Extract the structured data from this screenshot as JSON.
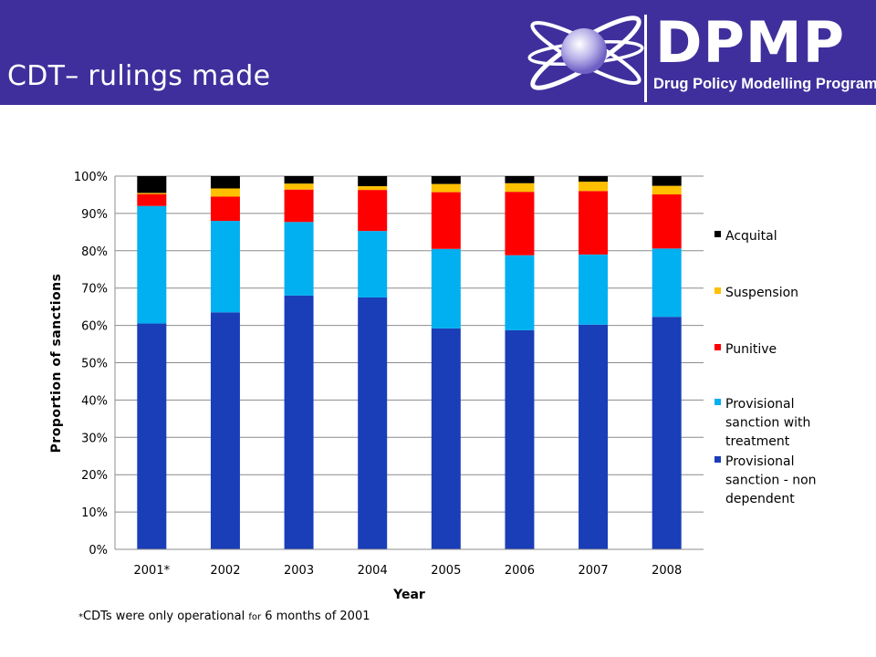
{
  "header": {
    "title": "CDT– rulings made",
    "logo_text": "DPMP",
    "logo_subtitle": "Drug Policy Modelling Program",
    "background_color": "#3f2f9c"
  },
  "footnote": {
    "star": "*",
    "part1": "CDTs were only operational ",
    "part2": "for",
    "part3": " 6 months of 2001"
  },
  "chart_data": {
    "type": "bar",
    "stacked": true,
    "categories": [
      "2001*",
      "2002",
      "2003",
      "2004",
      "2005",
      "2006",
      "2007",
      "2008"
    ],
    "series": [
      {
        "name": "Provisional sanction - non dependent",
        "color": "#1a3eb8",
        "values": [
          60.5,
          63.5,
          68.0,
          67.5,
          59.2,
          58.7,
          60.2,
          62.3
        ]
      },
      {
        "name": "Provisional sanction with treatment",
        "color": "#00b0f0",
        "values": [
          31.5,
          24.5,
          19.7,
          17.8,
          21.3,
          20.1,
          18.8,
          18.3
        ]
      },
      {
        "name": "Punitive",
        "color": "#ff0000",
        "values": [
          3.2,
          6.5,
          8.7,
          11.0,
          15.2,
          17.0,
          17.0,
          14.5
        ]
      },
      {
        "name": "Suspension",
        "color": "#ffc000",
        "values": [
          0.3,
          2.2,
          1.6,
          1.0,
          2.2,
          2.3,
          2.5,
          2.3
        ]
      },
      {
        "name": "Acquital",
        "color": "#000000",
        "values": [
          4.5,
          3.3,
          2.0,
          2.7,
          2.1,
          1.9,
          1.5,
          2.6
        ]
      }
    ],
    "legend_order": [
      "Acquital",
      "Suspension",
      "Punitive",
      "Provisional sanction with treatment",
      "Provisional sanction - non dependent"
    ],
    "legend_lines": {
      "Acquital": [
        "Acquital"
      ],
      "Suspension": [
        "Suspension"
      ],
      "Punitive": [
        "Punitive"
      ],
      "Provisional sanction with treatment": [
        "Provisional",
        "sanction with",
        "treatment"
      ],
      "Provisional sanction - non dependent": [
        "Provisional",
        "sanction - non",
        "dependent"
      ]
    },
    "ylim": [
      0,
      100
    ],
    "yticks": [
      0,
      10,
      20,
      30,
      40,
      50,
      60,
      70,
      80,
      90,
      100
    ],
    "ytick_labels": [
      "0%",
      "10%",
      "20%",
      "30%",
      "40%",
      "50%",
      "60%",
      "70%",
      "80%",
      "90%",
      "100%"
    ],
    "xlabel": "Year",
    "ylabel": "Proportion of sanctions",
    "grid": true,
    "legend_position": "right"
  }
}
